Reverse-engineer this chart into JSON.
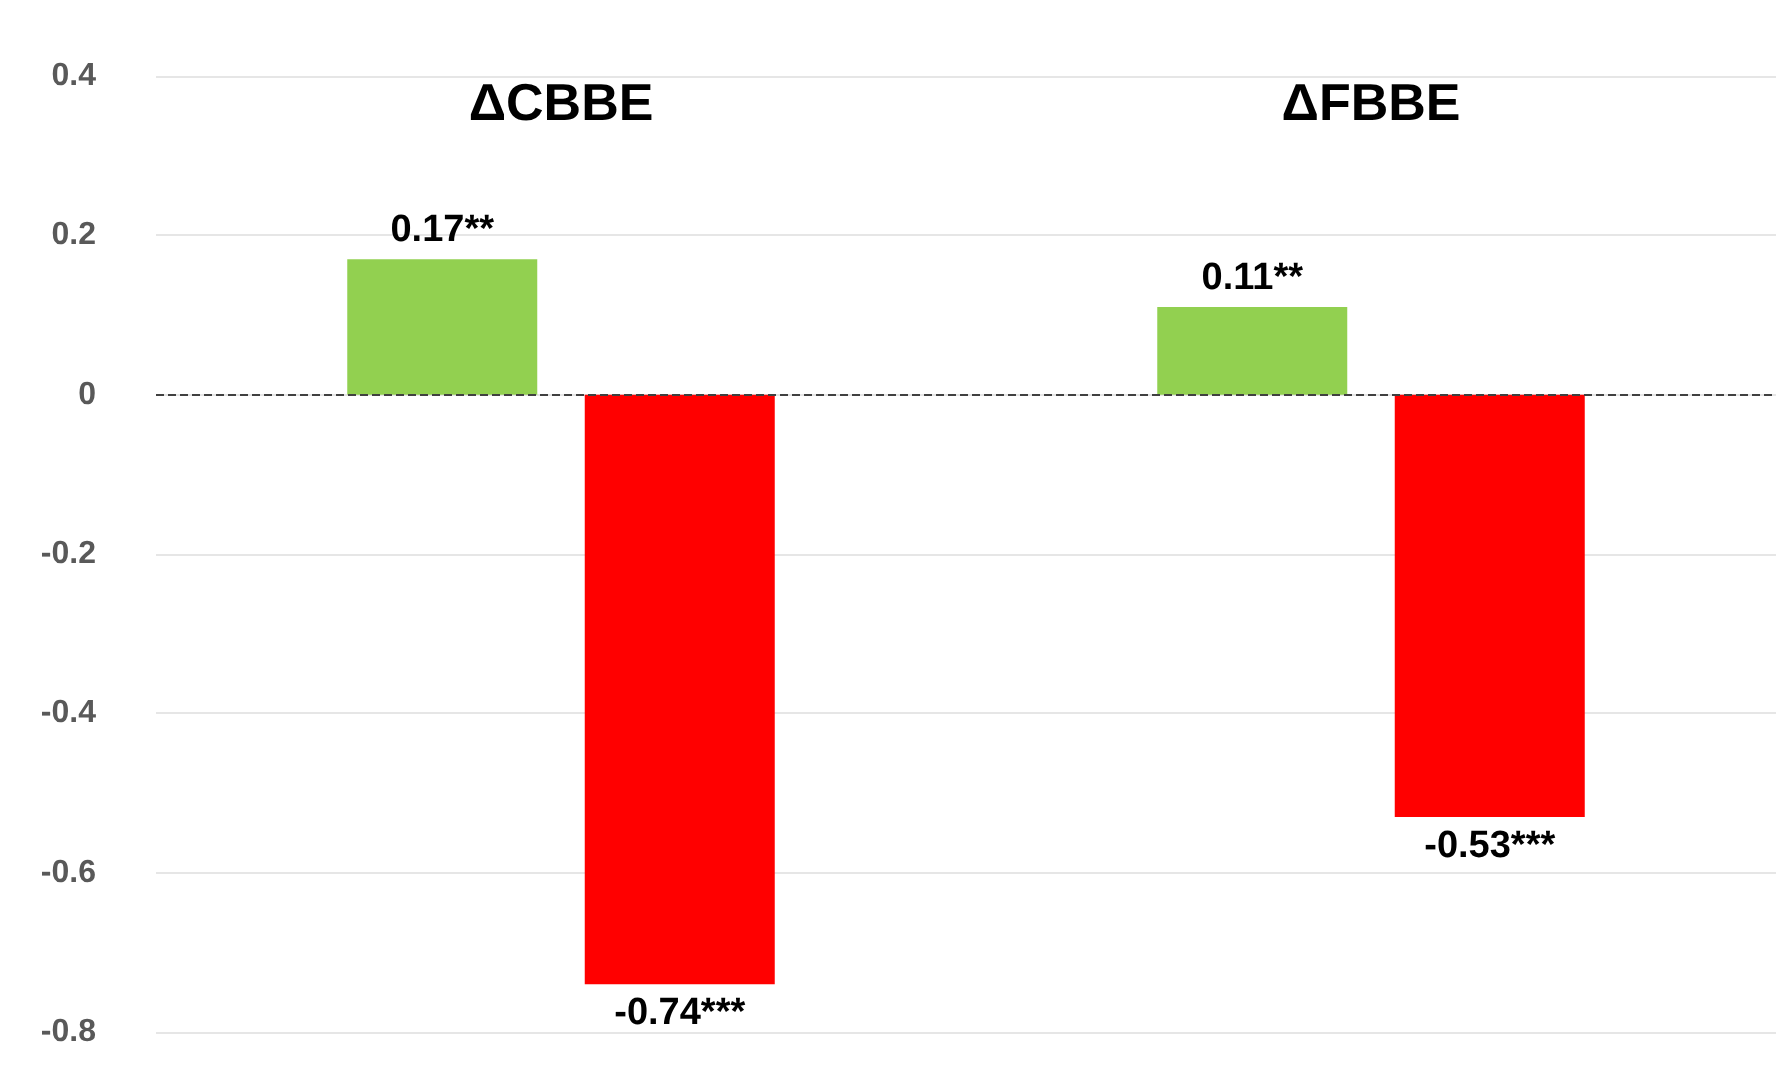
{
  "chart_data": {
    "type": "bar",
    "categories": [
      "ΔCBBE",
      "ΔFBBE"
    ],
    "series": [
      {
        "color": "#92d050",
        "values": [
          0.17,
          0.11
        ],
        "value_labels": [
          "0.17**",
          "0.11**"
        ]
      },
      {
        "color": "#ff0000",
        "values": [
          -0.74,
          -0.53
        ],
        "value_labels": [
          "-0.74***",
          "-0.53***"
        ]
      }
    ],
    "ylim": [
      -0.8,
      0.4
    ],
    "yticks": [
      -0.8,
      -0.6,
      -0.4,
      -0.2,
      0,
      0.2,
      0.4
    ],
    "grid": "y",
    "ref_lines": [
      {
        "axis": "y",
        "value": 0,
        "color": "#404040",
        "line_style": "dashed"
      }
    ]
  }
}
